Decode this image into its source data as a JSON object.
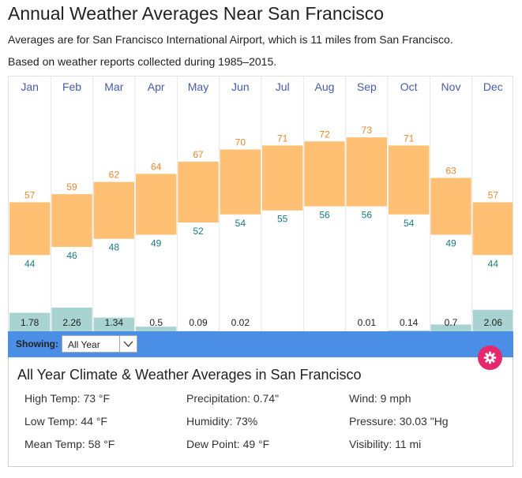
{
  "header": {
    "title": "Annual Weather Averages Near San Francisco",
    "subtitle1": "Averages are for San Francisco International Airport, which is 11 miles from San Francisco.",
    "subtitle2": "Based on weather reports collected during 1985–2015."
  },
  "chart_data": {
    "type": "bar",
    "categories": [
      "Jan",
      "Feb",
      "Mar",
      "Apr",
      "May",
      "Jun",
      "Jul",
      "Aug",
      "Sep",
      "Oct",
      "Nov",
      "Dec"
    ],
    "high_temp": [
      57,
      59,
      62,
      64,
      67,
      70,
      71,
      72,
      73,
      71,
      63,
      57
    ],
    "low_temp": [
      44,
      46,
      48,
      49,
      52,
      54,
      55,
      56,
      56,
      54,
      49,
      44
    ],
    "precipitation": [
      1.78,
      2.26,
      1.34,
      0.5,
      0.09,
      0.02,
      0,
      0,
      0.01,
      0.14,
      0.7,
      2.06
    ],
    "precip_labels": [
      "1.78",
      "2.26",
      "1.34",
      "0.5",
      "0.09",
      "0.02",
      "",
      "",
      "0.01",
      "0.14",
      "0.7",
      "2.06"
    ],
    "temp_range": [
      25,
      88
    ],
    "colors": {
      "temp_bar": "#ffc074",
      "high_text": "#e8862f",
      "low_text": "#1a7a80",
      "precip_bar": "#a8d3d0",
      "month_text": "#4a5aa8",
      "grid": "#e6e6e6"
    }
  },
  "controls": {
    "showing_label": "Showing:",
    "period_value": "All Year",
    "bar_color": "#4a8ee6",
    "gear_color": "#e8286c",
    "gear_icon": "gear-icon"
  },
  "summary": {
    "title": "All Year Climate & Weather Averages in San Francisco",
    "stats": [
      {
        "label": "High Temp: 73 °F"
      },
      {
        "label": "Precipitation: 0.74\""
      },
      {
        "label": "Wind: 9 mph"
      },
      {
        "label": "Low Temp: 44 °F"
      },
      {
        "label": "Humidity: 73%"
      },
      {
        "label": "Pressure: 30.03 \"Hg"
      },
      {
        "label": "Mean Temp: 58 °F"
      },
      {
        "label": "Dew Point: 49 °F"
      },
      {
        "label": "Visibility: 11 mi"
      }
    ]
  }
}
